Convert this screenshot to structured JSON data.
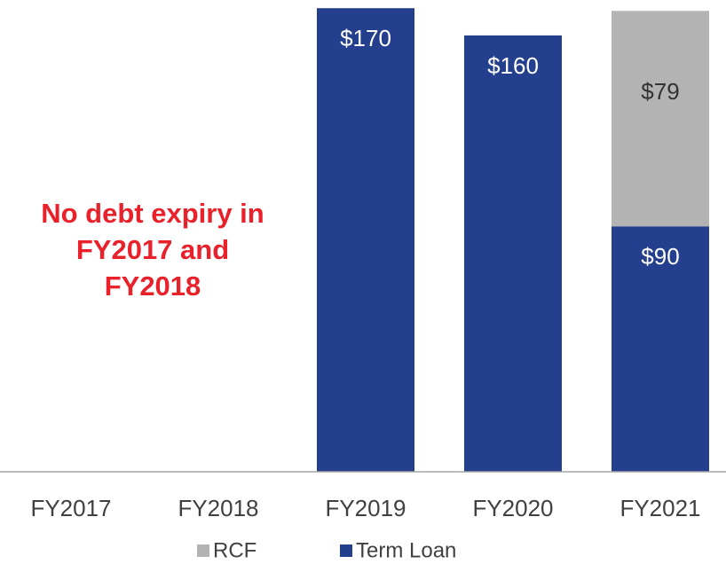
{
  "chart_data": {
    "type": "stacked_bar",
    "categories": [
      "FY2017",
      "FY2018",
      "FY2019",
      "FY2020",
      "FY2021"
    ],
    "series": [
      {
        "name": "Term Loan",
        "color": "#243f8d",
        "values": [
          null,
          null,
          170,
          160,
          90
        ],
        "value_labels": [
          null,
          null,
          "$170",
          "$160",
          "$90"
        ]
      },
      {
        "name": "RCF",
        "color": "#b3b3b3",
        "values": [
          null,
          null,
          null,
          null,
          79
        ],
        "value_labels": [
          null,
          null,
          null,
          null,
          "$79"
        ]
      }
    ],
    "ylim": [
      0,
      173
    ],
    "legend": "bottom",
    "annotation": [
      "No debt expiry in",
      "FY2017 and",
      "FY2018"
    ],
    "annotation_color": "#e8212b"
  }
}
